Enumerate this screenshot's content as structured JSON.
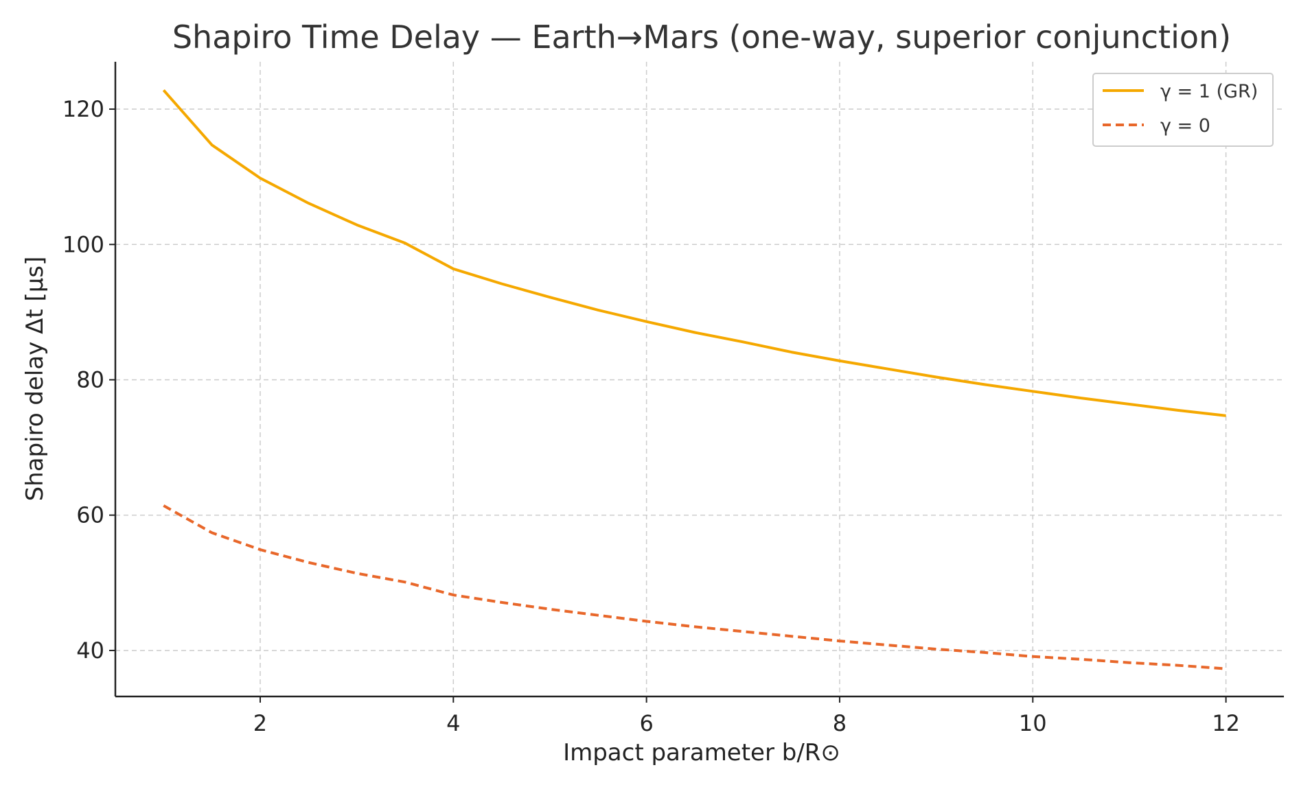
{
  "chart_data": {
    "type": "line",
    "title": "Shapiro Time Delay — Earth→Mars (one-way, superior conjunction)",
    "xlabel": "Impact parameter b/R⊙",
    "ylabel": "Shapiro delay Δt [μs]",
    "xlim": [
      0.5,
      12.6
    ],
    "ylim": [
      33.2,
      127
    ],
    "xticks": [
      2,
      4,
      6,
      8,
      10,
      12
    ],
    "yticks": [
      40,
      60,
      80,
      100,
      120
    ],
    "grid": true,
    "legend_position": "top-right",
    "x": [
      1,
      1.5,
      2,
      2.5,
      3,
      3.5,
      4,
      4.5,
      5,
      5.5,
      6,
      6.5,
      7,
      7.5,
      8,
      8.5,
      9,
      9.5,
      10,
      10.5,
      11,
      11.5,
      12
    ],
    "series": [
      {
        "name": "γ = 1 (GR)",
        "color": "#f5a800",
        "dash": "solid",
        "values": [
          122.8,
          114.7,
          109.8,
          106.1,
          102.9,
          100.2,
          96.4,
          94.2,
          92.2,
          90.3,
          88.6,
          87.0,
          85.6,
          84.1,
          82.8,
          81.6,
          80.4,
          79.3,
          78.3,
          77.3,
          76.4,
          75.5,
          74.7
        ]
      },
      {
        "name": "γ = 0",
        "color": "#e8672a",
        "dash": "dashed",
        "values": [
          61.4,
          57.4,
          54.9,
          53.0,
          51.4,
          50.1,
          48.2,
          47.1,
          46.1,
          45.2,
          44.3,
          43.5,
          42.8,
          42.1,
          41.4,
          40.8,
          40.2,
          39.7,
          39.1,
          38.7,
          38.2,
          37.8,
          37.3
        ]
      }
    ]
  }
}
